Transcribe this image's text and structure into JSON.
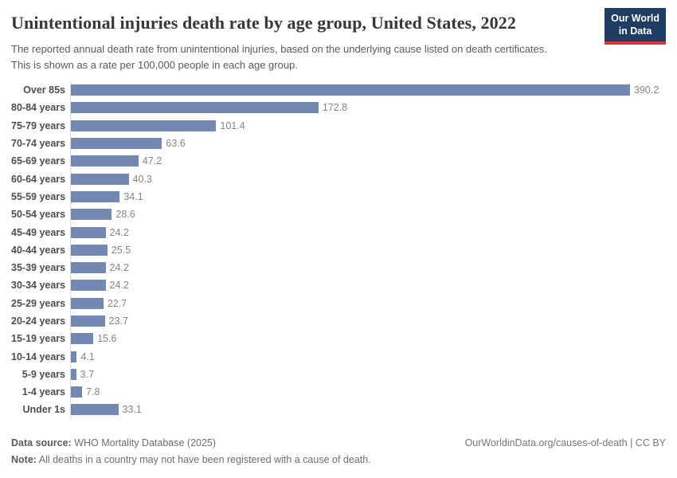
{
  "header": {
    "title": "Unintentional injuries death rate by age group, United States, 2022",
    "subtitle": "The reported annual death rate from unintentional injuries, based on the underlying cause listed on death certificates. This is shown as a rate per 100,000 people in each age group.",
    "logo_line1": "Our World",
    "logo_line2": "in Data"
  },
  "chart_data": {
    "type": "bar",
    "orientation": "horizontal",
    "title": "Unintentional injuries death rate by age group, United States, 2022",
    "xlabel": "",
    "ylabel": "",
    "xlim": [
      0,
      390.2
    ],
    "grid": "off",
    "legend": "none",
    "categories": [
      "Over 85s",
      "80-84 years",
      "75-79 years",
      "70-74 years",
      "65-69 years",
      "60-64 years",
      "55-59 years",
      "50-54 years",
      "45-49 years",
      "40-44 years",
      "35-39 years",
      "30-34 years",
      "25-29 years",
      "20-24 years",
      "15-19 years",
      "10-14 years",
      "5-9 years",
      "1-4 years",
      "Under 1s"
    ],
    "values": [
      390.2,
      172.8,
      101.4,
      63.6,
      47.2,
      40.3,
      34.1,
      28.6,
      24.2,
      25.5,
      24.2,
      24.2,
      22.7,
      23.7,
      15.6,
      4.1,
      3.7,
      7.8,
      33.1
    ],
    "value_labels": [
      "390.2",
      "172.8",
      "101.4",
      "63.6",
      "47.2",
      "40.3",
      "34.1",
      "28.6",
      "24.2",
      "25.5",
      "24.2",
      "24.2",
      "22.7",
      "23.7",
      "15.6",
      "4.1",
      "3.7",
      "7.8",
      "33.1"
    ],
    "unit": "deaths per 100,000 people"
  },
  "footer": {
    "datasource_label": "Data source:",
    "datasource_value": " WHO Mortality Database (2025)",
    "note_label": "Note:",
    "note_value": " All deaths in a country may not have been registered with a cause of death.",
    "attribution": "OurWorldinData.org/causes-of-death | CC BY"
  },
  "colors": {
    "bar": "#7389b1",
    "logo_bg": "#1d3d63",
    "logo_stripe": "#d73932",
    "axis_line": "#d9d9d9"
  }
}
